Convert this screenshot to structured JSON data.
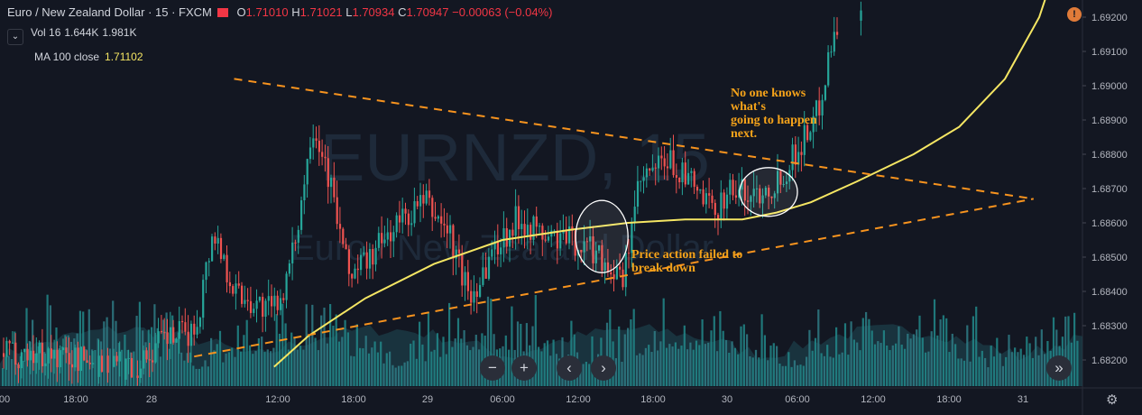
{
  "header": {
    "symbol": "Euro / New Zealand Dollar · 15 · FXCM",
    "open_label": "O",
    "open": "1.71010",
    "high_label": "H",
    "high": "1.71021",
    "low_label": "L",
    "low": "1.70934",
    "close_label": "C",
    "close": "1.70947",
    "change": "−0.00063 (−0.04%)"
  },
  "volume_indicator": {
    "label": "Vol 16",
    "v1": "1.644K",
    "v2": "1.981K"
  },
  "ma_indicator": {
    "label": "MA 100 close",
    "value": "1.71102"
  },
  "watermark": {
    "symbol": "EURNZD, 15",
    "description": "Euro / New Zealand Dollar"
  },
  "colors": {
    "up": "#26a69a",
    "down": "#ef5350",
    "ma": "#f5e663",
    "trendline": "#f7931e",
    "annotation": "#f5a31a",
    "background": "#131722"
  },
  "annotations": {
    "note1": [
      "No one knows",
      "what's",
      "going to happen",
      "next."
    ],
    "note2": [
      "Price action failed to",
      "break down"
    ]
  },
  "nav": {
    "zoom_out": "−",
    "zoom_in": "+",
    "prev": "‹",
    "next": "›",
    "jump": "»"
  },
  "alert_icon": "!",
  "chart_data": {
    "type": "candlestick",
    "y_axis_ticks": [
      "1.69200",
      "1.69100",
      "1.69000",
      "1.68900",
      "1.68800",
      "1.68700",
      "1.68600",
      "1.68500",
      "1.68400",
      "1.68300",
      "1.68200"
    ],
    "x_axis_ticks": [
      "00",
      "18:00",
      "28",
      "12:00",
      "18:00",
      "29",
      "06:00",
      "12:00",
      "18:00",
      "30",
      "06:00",
      "12:00",
      "18:00",
      "31"
    ],
    "ylim": [
      1.6815,
      1.693
    ],
    "ma_period": 100,
    "ma_points": [
      [
        0.24,
        1.6818
      ],
      [
        0.27,
        1.6827
      ],
      [
        0.32,
        1.6838
      ],
      [
        0.38,
        1.6848
      ],
      [
        0.44,
        1.6855
      ],
      [
        0.5,
        1.6858
      ],
      [
        0.55,
        1.686
      ],
      [
        0.6,
        1.6861
      ],
      [
        0.65,
        1.6861
      ],
      [
        0.68,
        1.6863
      ],
      [
        0.71,
        1.6866
      ],
      [
        0.75,
        1.6872
      ],
      [
        0.8,
        1.688
      ],
      [
        0.84,
        1.6888
      ],
      [
        0.88,
        1.6902
      ],
      [
        0.91,
        1.692
      ],
      [
        0.92,
        1.693
      ]
    ],
    "trend_lines": [
      {
        "from": [
          0.205,
          1.6902
        ],
        "to": [
          0.905,
          1.6867
        ]
      },
      {
        "from": [
          0.17,
          1.6821
        ],
        "to": [
          0.905,
          1.6867
        ]
      }
    ],
    "circles": [
      {
        "x": 0.527,
        "y": 1.6856
      },
      {
        "x": 0.673,
        "y": 1.6869
      }
    ],
    "candles": "generated-series"
  }
}
